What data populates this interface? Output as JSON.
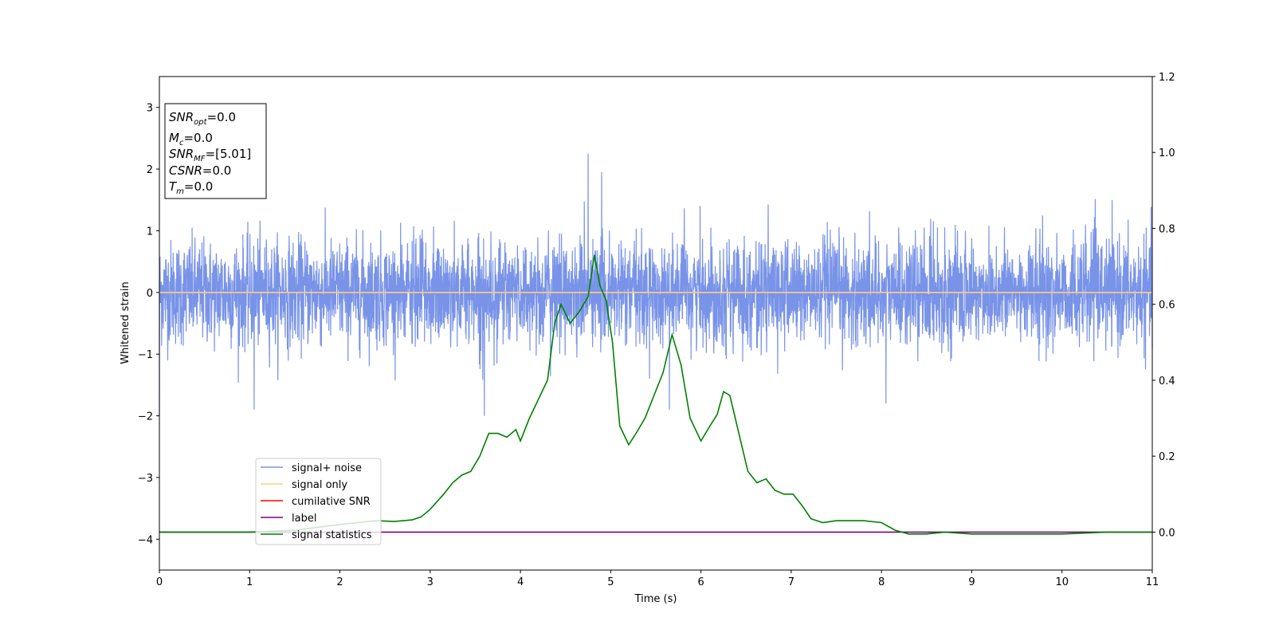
{
  "chart_data": {
    "type": "line",
    "title": "",
    "xlabel": "Time (s)",
    "ylabel": "Whitened strain",
    "xlim": [
      0,
      11
    ],
    "ylim": [
      -4.5,
      3.5
    ],
    "y2lim": [
      -0.1,
      1.2
    ],
    "grid": false,
    "legend_placement": "lower-left",
    "x_ticks": [
      0,
      1,
      2,
      3,
      4,
      5,
      6,
      7,
      8,
      9,
      10,
      11
    ],
    "y_ticks": [
      -4,
      -3,
      -2,
      -1,
      0,
      1,
      2,
      3
    ],
    "y2_ticks": [
      "0.0",
      "0.2",
      "0.4",
      "0.6",
      "0.8",
      "1.0",
      "1.2"
    ],
    "info_box": [
      {
        "sym": "SNR",
        "sub": "opt",
        "val": "=0.0"
      },
      {
        "sym": "M",
        "sub": "c",
        "val": "=0.0"
      },
      {
        "sym": "SNR",
        "sub": "MF",
        "val": "=[5.01]"
      },
      {
        "sym": "CSNR",
        "sub": "",
        "val": "=0.0"
      },
      {
        "sym": "T",
        "sub": "m",
        "val": "=0.0"
      }
    ],
    "series": [
      {
        "name": "signal+ noise",
        "color": "#7893e8",
        "axis": "left",
        "kind": "noise",
        "center": 0.0,
        "envelope": [
          -1.0,
          1.05
        ],
        "peaks": [
          [
            4.75,
            2.25
          ],
          [
            4.9,
            1.95
          ],
          [
            1.05,
            -1.9
          ],
          [
            3.6,
            -2.0
          ],
          [
            5.65,
            -1.9
          ],
          [
            8.05,
            -1.8
          ]
        ]
      },
      {
        "name": "signal only",
        "color": "#ffcc80",
        "axis": "left",
        "x": [
          0,
          11
        ],
        "y": [
          0.0,
          0.0
        ]
      },
      {
        "name": "cumilative SNR",
        "color": "#ff0000",
        "axis": "right",
        "x": [],
        "y": []
      },
      {
        "name": "label",
        "color": "#800080",
        "axis": "right",
        "x": [
          0,
          11
        ],
        "y": [
          0.0,
          0.0
        ]
      },
      {
        "name": "signal statistics",
        "color": "#008000",
        "axis": "right",
        "x": [
          0,
          0.5,
          1.0,
          1.5,
          2.0,
          2.2,
          2.4,
          2.6,
          2.8,
          2.9,
          3.0,
          3.15,
          3.25,
          3.35,
          3.45,
          3.55,
          3.65,
          3.75,
          3.85,
          3.95,
          4.0,
          4.1,
          4.2,
          4.3,
          4.38,
          4.45,
          4.55,
          4.65,
          4.75,
          4.82,
          4.88,
          4.95,
          5.02,
          5.1,
          5.2,
          5.28,
          5.38,
          5.48,
          5.58,
          5.68,
          5.78,
          5.88,
          6.0,
          6.1,
          6.18,
          6.25,
          6.32,
          6.42,
          6.52,
          6.62,
          6.72,
          6.82,
          6.92,
          7.02,
          7.12,
          7.22,
          7.35,
          7.5,
          7.65,
          7.8,
          8.0,
          8.15,
          8.3,
          8.5,
          8.7,
          9.0,
          9.5,
          10.0,
          10.5,
          11.0
        ],
        "y": [
          0.0,
          0.0,
          0.0,
          0.005,
          0.02,
          0.025,
          0.03,
          0.028,
          0.032,
          0.04,
          0.06,
          0.1,
          0.13,
          0.15,
          0.16,
          0.2,
          0.26,
          0.26,
          0.25,
          0.27,
          0.24,
          0.3,
          0.35,
          0.4,
          0.55,
          0.6,
          0.55,
          0.58,
          0.62,
          0.73,
          0.65,
          0.61,
          0.5,
          0.28,
          0.23,
          0.26,
          0.3,
          0.36,
          0.42,
          0.52,
          0.44,
          0.3,
          0.24,
          0.28,
          0.31,
          0.37,
          0.36,
          0.26,
          0.16,
          0.13,
          0.14,
          0.11,
          0.1,
          0.1,
          0.07,
          0.035,
          0.025,
          0.03,
          0.03,
          0.03,
          0.025,
          0.005,
          -0.005,
          -0.005,
          0.0,
          -0.005,
          -0.005,
          -0.005,
          0.0,
          0.0
        ]
      }
    ]
  }
}
